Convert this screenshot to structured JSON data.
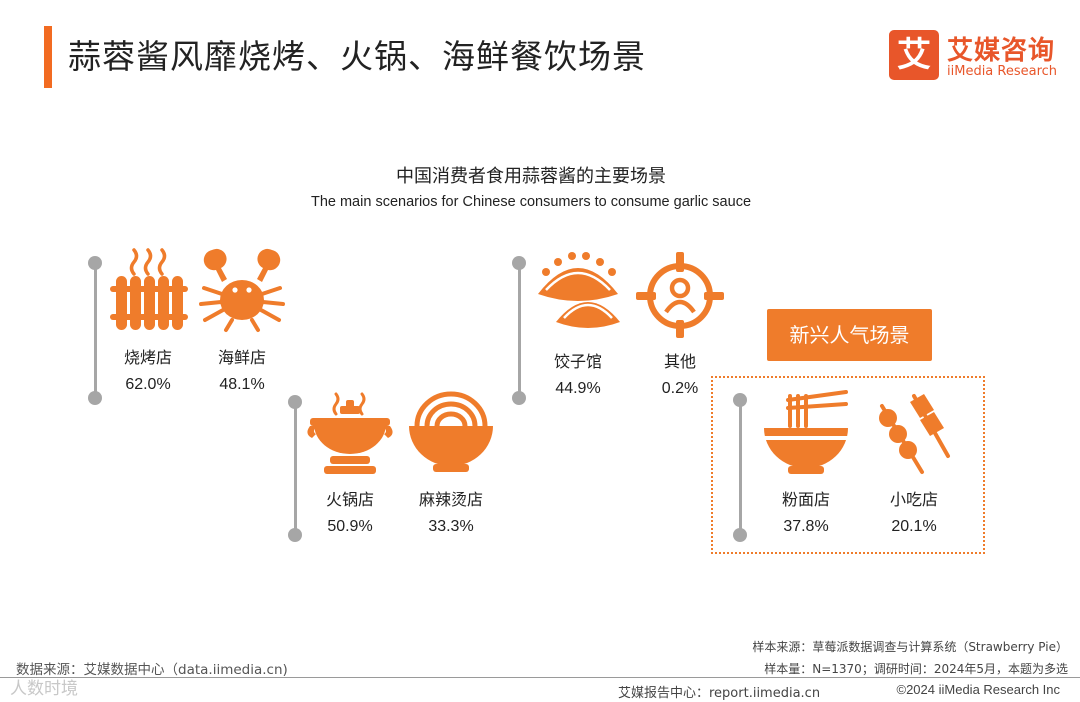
{
  "page_title": "蒜蓉酱风靡烧烤、火锅、海鲜餐饮场景",
  "logo": {
    "mark": "艾",
    "name_cn": "艾媒咨询",
    "name_en": "iiMedia Research"
  },
  "colors": {
    "accent": "#f26b21",
    "icon": "#ef7c2b",
    "connector": "#a6a6a6"
  },
  "chart_data": {
    "type": "table",
    "title": "中国消费者食用蒜蓉酱的主要场景",
    "subtitle": "The main scenarios for Chinese consumers to consume garlic sauce",
    "unit": "%",
    "categories": [
      "烧烤店",
      "海鲜店",
      "火锅店",
      "麻辣烫店",
      "饺子馆",
      "其他",
      "粉面店",
      "小吃店"
    ],
    "values": [
      62.0,
      48.1,
      50.9,
      33.3,
      44.9,
      0.2,
      37.8,
      20.1
    ],
    "value_labels": [
      "62.0%",
      "48.1%",
      "50.9%",
      "33.3%",
      "44.9%",
      "0.2%",
      "37.8%",
      "20.1%"
    ],
    "icons": [
      "radiator-icon",
      "crab-icon",
      "hotpot-icon",
      "noodle-bowl-icon",
      "dumpling-icon",
      "target-person-icon",
      "noodles-chopsticks-icon",
      "skewer-icon"
    ],
    "highlight": {
      "label": "新兴人气场景",
      "categories": [
        "粉面店",
        "小吃店"
      ]
    }
  },
  "footer": {
    "source_left": "数据来源：艾媒数据中心（data.iimedia.cn)",
    "sample_source": "样本来源：草莓派数据调查与计算系统（Strawberry Pie）",
    "sample_size": "样本量：N=1370；调研时间：2024年5月，本题为多选",
    "report_center": "艾媒报告中心：report.iimedia.cn",
    "copyright": "©2024  iiMedia Research  Inc",
    "watermark": "人数时境"
  }
}
